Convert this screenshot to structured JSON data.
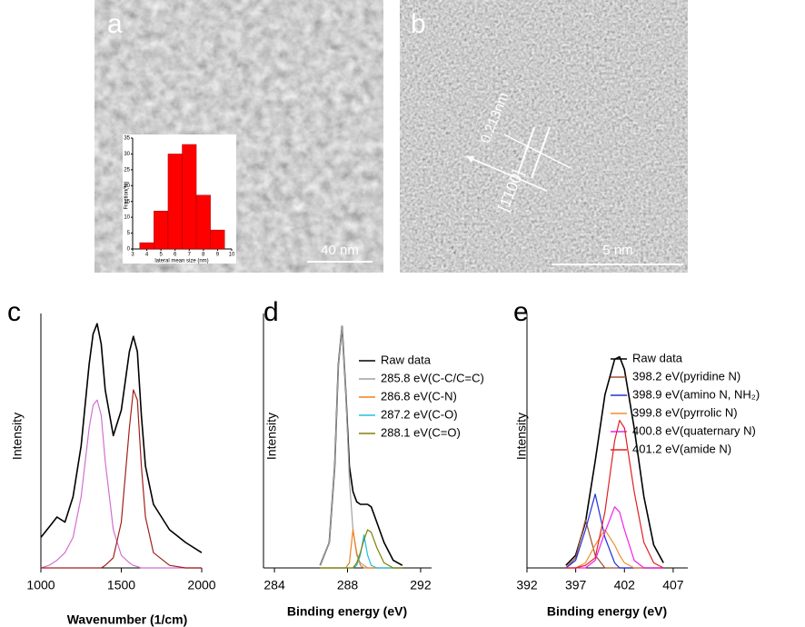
{
  "panel_labels": [
    "a",
    "b",
    "c",
    "d",
    "e"
  ],
  "images": [
    {
      "scale_bar": "40 nm"
    },
    {
      "scale_bar": "5 nm",
      "annotations": [
        "0.213nm",
        "[1̄100]"
      ]
    }
  ],
  "chart_data": [
    {
      "type": "histogram",
      "x_label": "lateral mean size (nm)",
      "y_label": "Fraction(%)",
      "color": "#ff0000",
      "bins": [
        3.5,
        4.5,
        5.5,
        6.5,
        7.5,
        8.5,
        9.5
      ],
      "counts": [
        2,
        12,
        30,
        33,
        17,
        6
      ],
      "xlim": [
        3,
        10
      ],
      "xticks": [
        3,
        4,
        5,
        6,
        7,
        8,
        9,
        10
      ],
      "ylim": [
        0,
        35
      ],
      "yticks": [
        0,
        5,
        10,
        15,
        20,
        25,
        30,
        35
      ]
    },
    {
      "type": "line",
      "x_label": "Wavenumber (1/cm)",
      "y_label": "Intensity",
      "xlim": [
        1000,
        2000
      ],
      "xticks": [
        1000,
        1500,
        2000
      ],
      "ylim": [
        0,
        100
      ],
      "x": [
        1000,
        1050,
        1100,
        1150,
        1200,
        1250,
        1300,
        1325,
        1350,
        1375,
        1400,
        1450,
        1500,
        1550,
        1575,
        1600,
        1625,
        1650,
        1700,
        1800,
        1900,
        2000
      ],
      "series": [
        {
          "color": "#000000",
          "values": [
            12,
            16,
            20,
            18,
            28,
            48,
            80,
            92,
            96,
            88,
            70,
            52,
            62,
            85,
            91,
            85,
            60,
            40,
            25,
            15,
            10,
            6
          ]
        },
        {
          "color": "#d070d0",
          "values": [
            0,
            1,
            3,
            6,
            12,
            28,
            55,
            64,
            66,
            60,
            42,
            15,
            5,
            2,
            1,
            0.5,
            0,
            0,
            0,
            0,
            0,
            0
          ]
        },
        {
          "color": "#a0201a",
          "values": [
            0,
            0,
            0,
            0,
            0,
            0,
            0,
            0,
            0,
            0,
            1,
            4,
            18,
            55,
            70,
            66,
            40,
            20,
            6,
            1,
            0,
            0
          ]
        }
      ]
    },
    {
      "type": "line",
      "x_label": "Binding energy (eV)",
      "y_label": "Intensity",
      "legend": "upper right",
      "xlim": [
        283.4,
        292.6
      ],
      "xticks": [
        284,
        288,
        292
      ],
      "ylim": [
        0,
        100
      ],
      "x": [
        286.5,
        287,
        287.3,
        287.5,
        287.7,
        287.9,
        288.1,
        288.3,
        288.5,
        288.7,
        288.9,
        289.1,
        289.3,
        289.6,
        290,
        290.5,
        291
      ],
      "series": [
        {
          "name": "Raw data",
          "color": "#000000",
          "values": [
            1,
            10,
            40,
            80,
            95,
            70,
            40,
            30,
            26,
            25,
            25,
            25,
            24,
            18,
            10,
            3,
            1
          ]
        },
        {
          "name": "285.8 eV(C-C/C=C)",
          "color": "#a0a0a0",
          "values": [
            1,
            10,
            40,
            80,
            95,
            70,
            35,
            15,
            5,
            2,
            1,
            0,
            0,
            0,
            0,
            0,
            0
          ]
        },
        {
          "name": "286.8 eV(C-N)",
          "color": "#f08020",
          "values": [
            0,
            0,
            0,
            0,
            0,
            0,
            2,
            15,
            6,
            1,
            0,
            0,
            0,
            0,
            0,
            0,
            0
          ]
        },
        {
          "name": "287.2 eV(C-O)",
          "color": "#20c0e0",
          "values": [
            0,
            0,
            0,
            0,
            0,
            0,
            0,
            0,
            1,
            5,
            13,
            5,
            1,
            0,
            0,
            0,
            0
          ]
        },
        {
          "name": "288.1 eV(C=O)",
          "color": "#808000",
          "values": [
            0,
            0,
            0,
            0,
            0,
            0,
            0,
            0,
            2,
            6,
            11,
            15,
            14,
            8,
            2,
            0,
            0
          ]
        }
      ]
    },
    {
      "type": "line",
      "x_label": "Binding energy (eV)",
      "y_label": "Intensity",
      "legend": "upper right",
      "xlim": [
        392,
        408.5
      ],
      "xticks": [
        392,
        397,
        402,
        407
      ],
      "ylim": [
        0,
        100
      ],
      "x": [
        396,
        397,
        398,
        399,
        400,
        401,
        401.5,
        402,
        403,
        404,
        405,
        406
      ],
      "series": [
        {
          "name": "Raw data",
          "color": "#000000",
          "values": [
            1,
            5,
            18,
            42,
            68,
            82,
            83,
            78,
            55,
            28,
            9,
            2
          ]
        },
        {
          "name": "398.2 eV(pyridine N)",
          "color": "#a05030",
          "values": [
            0,
            4,
            19,
            5,
            0,
            0,
            0,
            0,
            0,
            0,
            0,
            0
          ]
        },
        {
          "name": "398.9 eV(amino N, NH₂)",
          "color": "#2030e0",
          "values": [
            0,
            3,
            15,
            29,
            12,
            2,
            0,
            0,
            0,
            0,
            0,
            0
          ]
        },
        {
          "name": "399.8 eV(pyrrolic N)",
          "color": "#f09030",
          "values": [
            0,
            0,
            2,
            9,
            15,
            9,
            5,
            2,
            0,
            0,
            0,
            0
          ]
        },
        {
          "name": "400.8 eV(quaternary N)",
          "color": "#f020f0",
          "values": [
            0,
            0,
            0,
            3,
            14,
            24,
            22,
            15,
            3,
            0,
            0,
            0
          ]
        },
        {
          "name": "401.2 eV(amide N)",
          "color": "#e02020",
          "values": [
            0,
            0,
            1,
            4,
            22,
            50,
            58,
            55,
            30,
            10,
            2,
            0
          ]
        }
      ]
    }
  ]
}
